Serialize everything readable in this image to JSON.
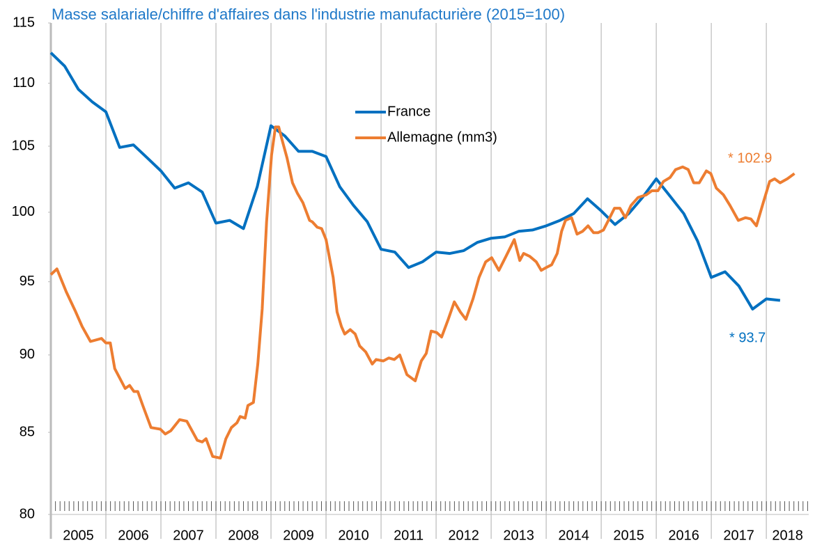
{
  "chart_data": {
    "type": "line",
    "title": "Masse salariale/chiffre d'affaires dans l'industrie manufacturière (2015=100)",
    "log_y": true,
    "grid": "x",
    "legend": "top",
    "xlim": [
      2005,
      2018.77
    ],
    "xticks": [
      2005,
      2006,
      2007,
      2008,
      2009,
      2010,
      2011,
      2012,
      2013,
      2014,
      2015,
      2016,
      2017,
      2018
    ],
    "ylim": [
      80,
      115
    ],
    "yticks": [
      80,
      85,
      90,
      95,
      100,
      105,
      110,
      115
    ],
    "series": [
      {
        "name": "France",
        "color": "#0070c0",
        "x": [
          2005,
          2005.25,
          2005.5,
          2005.75,
          2006,
          2006.25,
          2006.5,
          2006.75,
          2007,
          2007.25,
          2007.5,
          2007.75,
          2008,
          2008.25,
          2008.5,
          2008.75,
          2009,
          2009.25,
          2009.5,
          2009.75,
          2010,
          2010.25,
          2010.5,
          2010.75,
          2011,
          2011.25,
          2011.5,
          2011.75,
          2012,
          2012.25,
          2012.5,
          2012.75,
          2013,
          2013.25,
          2013.5,
          2013.75,
          2014,
          2014.25,
          2014.5,
          2014.75,
          2015,
          2015.25,
          2015.5,
          2015.75,
          2016,
          2016.25,
          2016.5,
          2016.75,
          2017,
          2017.25,
          2017.5,
          2017.75,
          2018,
          2018.25
        ],
        "values": [
          112.5,
          111.4,
          109.5,
          108.5,
          107.7,
          104.9,
          105.1,
          104.1,
          103.1,
          101.8,
          102.2,
          101.5,
          99.2,
          99.4,
          98.8,
          101.9,
          106.6,
          105.8,
          104.6,
          104.6,
          104.2,
          101.9,
          100.5,
          99.3,
          97.3,
          97.1,
          96.0,
          96.4,
          97.1,
          97.0,
          97.2,
          97.8,
          98.1,
          98.2,
          98.6,
          98.7,
          99.0,
          99.4,
          99.9,
          101.0,
          100.1,
          99.1,
          99.9,
          101.1,
          102.5,
          101.2,
          99.9,
          97.9,
          95.3,
          95.7,
          94.7,
          93.1,
          93.8,
          93.7
        ]
      },
      {
        "name": "Allemagne (mm3)",
        "color": "#ed7d31",
        "x": [
          2005.0,
          2005.11,
          2005.28,
          2005.44,
          2005.57,
          2005.72,
          2005.92,
          2006.0,
          2006.08,
          2006.16,
          2006.35,
          2006.43,
          2006.51,
          2006.58,
          2006.67,
          2006.82,
          2006.99,
          2007.08,
          2007.18,
          2007.34,
          2007.47,
          2007.66,
          2007.75,
          2007.82,
          2007.94,
          2008.08,
          2008.18,
          2008.28,
          2008.38,
          2008.44,
          2008.53,
          2008.58,
          2008.68,
          2008.76,
          2008.84,
          2008.92,
          2009.01,
          2009.08,
          2009.14,
          2009.2,
          2009.29,
          2009.39,
          2009.48,
          2009.58,
          2009.7,
          2009.75,
          2009.84,
          2009.92,
          2010.0,
          2010.13,
          2010.2,
          2010.28,
          2010.34,
          2010.44,
          2010.53,
          2010.61,
          2010.72,
          2010.84,
          2010.91,
          2011.04,
          2011.14,
          2011.24,
          2011.34,
          2011.47,
          2011.62,
          2011.73,
          2011.82,
          2011.91,
          2012.01,
          2012.1,
          2012.22,
          2012.33,
          2012.44,
          2012.54,
          2012.67,
          2012.78,
          2012.9,
          2013.01,
          2013.14,
          2013.27,
          2013.42,
          2013.52,
          2013.59,
          2013.7,
          2013.82,
          2013.91,
          2014.0,
          2014.1,
          2014.2,
          2014.28,
          2014.35,
          2014.46,
          2014.56,
          2014.66,
          2014.76,
          2014.86,
          2014.94,
          2015.04,
          2015.13,
          2015.24,
          2015.34,
          2015.44,
          2015.54,
          2015.67,
          2015.82,
          2015.92,
          2016.03,
          2016.13,
          2016.25,
          2016.35,
          2016.48,
          2016.58,
          2016.68,
          2016.78,
          2016.91,
          2016.99,
          2017.09,
          2017.22,
          2017.34,
          2017.49,
          2017.62,
          2017.72,
          2017.82,
          2017.95,
          2018.06,
          2018.15,
          2018.25,
          2018.38,
          2018.51
        ],
        "values": [
          95.5,
          95.9,
          94.3,
          93.0,
          91.9,
          90.9,
          91.1,
          90.8,
          90.8,
          89.1,
          87.8,
          88.0,
          87.6,
          87.6,
          86.7,
          85.3,
          85.2,
          84.9,
          85.1,
          85.8,
          85.7,
          84.5,
          84.4,
          84.6,
          83.5,
          83.4,
          84.6,
          85.3,
          85.6,
          86.0,
          85.9,
          86.7,
          86.9,
          89.4,
          93.1,
          99.3,
          104.3,
          106.5,
          106.5,
          105.5,
          104.1,
          102.2,
          101.4,
          100.7,
          99.4,
          99.3,
          98.9,
          98.8,
          98.0,
          95.3,
          92.9,
          91.9,
          91.4,
          91.7,
          91.4,
          90.6,
          90.2,
          89.4,
          89.7,
          89.6,
          89.8,
          89.7,
          90.0,
          88.7,
          88.3,
          89.6,
          90.1,
          91.6,
          91.5,
          91.2,
          92.4,
          93.6,
          92.9,
          92.4,
          93.8,
          95.3,
          96.4,
          96.7,
          95.8,
          96.8,
          98.0,
          96.5,
          97.0,
          96.8,
          96.4,
          95.8,
          96.0,
          96.2,
          97.0,
          98.6,
          99.4,
          99.6,
          98.4,
          98.6,
          99.0,
          98.5,
          98.5,
          98.7,
          99.4,
          100.3,
          100.3,
          99.6,
          100.5,
          101.1,
          101.3,
          101.6,
          101.6,
          102.3,
          102.6,
          103.2,
          103.4,
          103.2,
          102.2,
          102.2,
          103.1,
          102.9,
          101.8,
          101.3,
          100.5,
          99.4,
          99.6,
          99.5,
          99.0,
          100.8,
          102.3,
          102.5,
          102.2,
          102.5,
          102.9
        ]
      }
    ],
    "annotations": [
      {
        "text": "* 102.9",
        "color": "#ed7d31"
      },
      {
        "text": "* 93.7",
        "color": "#0070c0"
      }
    ]
  }
}
